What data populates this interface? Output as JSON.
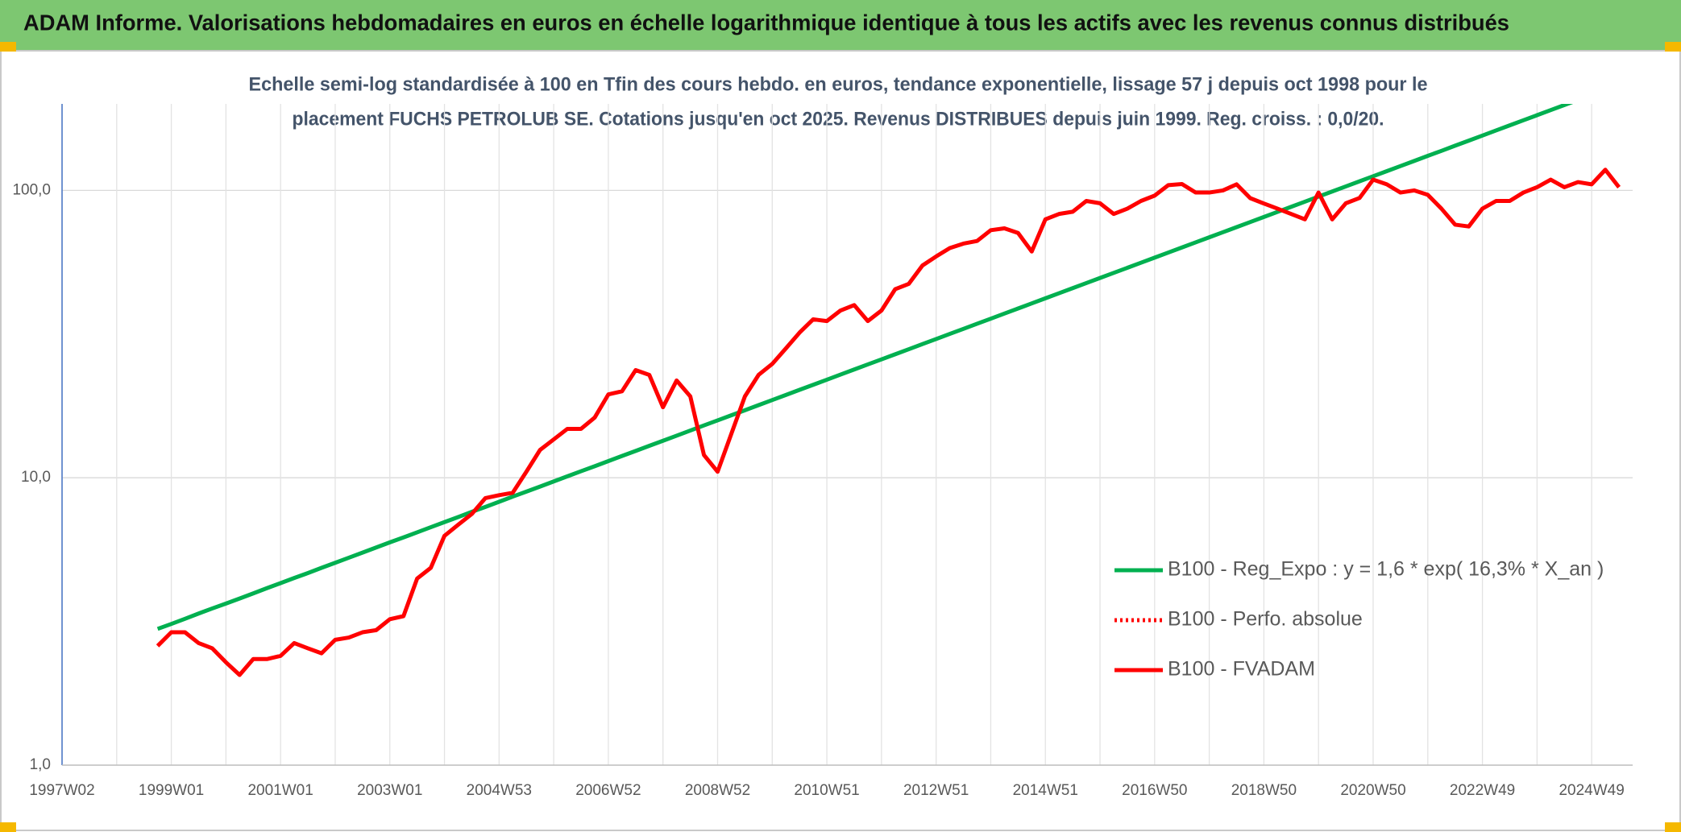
{
  "chart_data": {
    "type": "line",
    "title": "ADAM Informe. Valorisations hebdomadaires en euros en échelle logarithmique identique à tous les actifs avec les revenus connus distribués",
    "subtitle": [
      "Echelle semi-log standardisée à 100 en Tfin des cours hebdo. en euros, tendance exponentielle, lissage 57 j depuis oct 1998 pour le",
      "placement FUCHS PETROLUB SE. Cotations jusqu'en oct 2025. Revenus DISTRIBUES depuis juin 1999. Reg. croiss. : 0,0/20."
    ],
    "log_y": true,
    "grid": true,
    "legend": "lower right",
    "ylim": [
      1,
      200
    ],
    "yticks": [
      {
        "value": 1,
        "label": "1,0"
      },
      {
        "value": 10,
        "label": "10,0"
      },
      {
        "value": 100,
        "label": "100,0"
      }
    ],
    "categories": [
      "1997W02",
      null,
      null,
      null,
      null,
      null,
      null,
      null,
      "1999W01",
      null,
      null,
      null,
      null,
      null,
      null,
      null,
      "2001W01",
      null,
      null,
      null,
      null,
      null,
      null,
      null,
      "2003W01",
      null,
      null,
      null,
      null,
      null,
      null,
      null,
      "2004W53",
      null,
      null,
      null,
      null,
      null,
      null,
      null,
      "2006W52",
      null,
      null,
      null,
      null,
      null,
      null,
      null,
      "2008W52",
      null,
      null,
      null,
      null,
      null,
      null,
      null,
      "2010W51",
      null,
      null,
      null,
      null,
      null,
      null,
      null,
      "2012W51",
      null,
      null,
      null,
      null,
      null,
      null,
      null,
      "2014W51",
      null,
      null,
      null,
      null,
      null,
      null,
      null,
      "2016W50",
      null,
      null,
      null,
      null,
      null,
      null,
      null,
      "2018W50",
      null,
      null,
      null,
      null,
      null,
      null,
      null,
      "2020W50",
      null,
      null,
      null,
      null,
      null,
      null,
      null,
      "2022W49",
      null,
      null,
      null,
      null,
      null,
      null,
      null,
      "2024W49",
      null,
      null
    ],
    "series": [
      {
        "name": "B100 - Reg_Expo : y = 1,6 * exp( 16,3% * X_an )",
        "color": "#00b050",
        "style": "solid",
        "values": [
          null,
          null,
          null,
          null,
          null,
          null,
          null,
          2.98,
          3.1,
          3.23,
          3.37,
          3.51,
          3.65,
          3.8,
          3.96,
          4.13,
          4.3,
          4.48,
          4.66,
          4.86,
          5.06,
          5.27,
          5.49,
          5.72,
          5.96,
          6.2,
          6.46,
          6.73,
          7.01,
          7.3,
          7.61,
          7.92,
          8.25,
          8.6,
          8.95,
          9.32,
          9.71,
          10.12,
          10.54,
          10.97,
          11.43,
          11.91,
          12.4,
          12.92,
          13.45,
          14.01,
          14.6,
          15.21,
          15.84,
          16.5,
          17.18,
          17.9,
          18.64,
          19.42,
          20.23,
          21.07,
          21.94,
          22.86,
          23.81,
          24.8,
          25.83,
          26.9,
          28.02,
          29.19,
          30.4,
          31.67,
          32.98,
          34.36,
          35.78,
          37.27,
          38.82,
          40.44,
          42.12,
          43.87,
          45.7,
          47.6,
          49.57,
          51.64,
          53.78,
          56.02,
          58.35,
          60.78,
          63.3,
          65.94,
          68.68,
          71.54,
          74.51,
          77.62,
          80.84,
          84.21,
          87.71,
          91.36,
          95.17,
          99.13,
          103.25,
          107.55,
          112.02,
          116.68,
          121.54,
          126.6,
          131.9,
          137.3,
          143.1,
          149.0,
          155.2,
          161.7,
          168.4,
          175.4,
          182.7,
          190.3,
          198.2,
          206.4,
          null,
          null,
          null
        ]
      },
      {
        "name": "B100 - Perfo. absolue",
        "color": "#ff0000",
        "style": "dotted",
        "values": [
          null,
          null,
          null,
          null,
          null,
          null,
          null,
          2.6,
          2.9,
          2.9,
          2.66,
          2.55,
          2.28,
          2.06,
          2.34,
          2.34,
          2.4,
          2.66,
          2.55,
          2.45,
          2.73,
          2.78,
          2.9,
          2.95,
          3.22,
          3.3,
          4.46,
          4.86,
          6.28,
          6.86,
          7.48,
          8.5,
          8.7,
          8.87,
          10.5,
          12.5,
          13.6,
          14.8,
          14.8,
          16.2,
          19.5,
          20,
          23.7,
          22.8,
          17.6,
          21.8,
          19.2,
          12,
          10.5,
          14.2,
          19.2,
          22.8,
          24.9,
          28.2,
          32,
          35.6,
          35.1,
          38.2,
          39.9,
          35.1,
          38.2,
          45.3,
          47.3,
          54.8,
          58.9,
          63,
          65.3,
          66.7,
          72.7,
          73.8,
          71.1,
          61.3,
          79.3,
          82.8,
          84.3,
          91.9,
          90.2,
          82.8,
          86.4,
          91.9,
          95.9,
          104.3,
          105.2,
          98.3,
          98.3,
          100,
          105,
          94,
          90,
          86.4,
          82.8,
          79.3,
          98.3,
          79.3,
          90.2,
          94.1,
          109,
          105,
          98.3,
          100,
          96.5,
          86.4,
          76,
          74.9,
          86.4,
          91.9,
          91.9,
          98.3,
          102.6,
          109,
          102.6,
          106.9,
          105,
          118,
          102.6
        ]
      },
      {
        "name": "B100 - FVADAM",
        "color": "#ff0000",
        "style": "solid",
        "values": [
          null,
          null,
          null,
          null,
          null,
          null,
          null,
          2.6,
          2.9,
          2.9,
          2.66,
          2.55,
          2.28,
          2.06,
          2.34,
          2.34,
          2.4,
          2.66,
          2.55,
          2.45,
          2.73,
          2.78,
          2.9,
          2.95,
          3.22,
          3.3,
          4.46,
          4.86,
          6.28,
          6.86,
          7.48,
          8.5,
          8.7,
          8.87,
          10.5,
          12.5,
          13.6,
          14.8,
          14.8,
          16.2,
          19.5,
          20,
          23.7,
          22.8,
          17.6,
          21.8,
          19.2,
          12,
          10.5,
          14.2,
          19.2,
          22.8,
          24.9,
          28.2,
          32,
          35.6,
          35.1,
          38.2,
          39.9,
          35.1,
          38.2,
          45.3,
          47.3,
          54.8,
          58.9,
          63,
          65.3,
          66.7,
          72.7,
          73.8,
          71.1,
          61.3,
          79.3,
          82.8,
          84.3,
          91.9,
          90.2,
          82.8,
          86.4,
          91.9,
          95.9,
          104.3,
          105.2,
          98.3,
          98.3,
          100,
          105,
          94,
          90,
          86.4,
          82.8,
          79.3,
          98.3,
          79.3,
          90.2,
          94.1,
          109,
          105,
          98.3,
          100,
          96.5,
          86.4,
          76,
          74.9,
          86.4,
          91.9,
          91.9,
          98.3,
          102.6,
          109,
          102.6,
          106.9,
          105,
          118,
          102.6
        ]
      }
    ]
  }
}
